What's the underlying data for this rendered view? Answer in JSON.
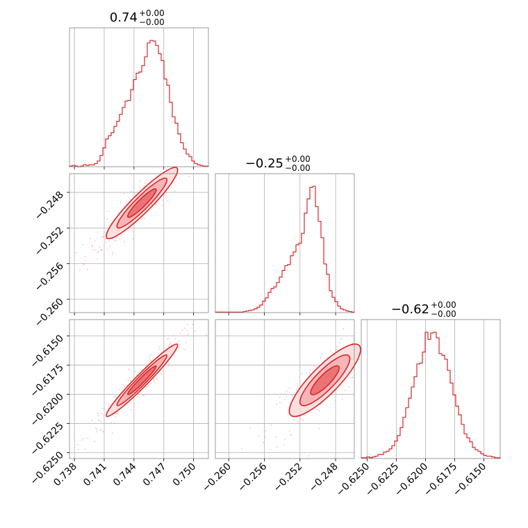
{
  "colors": {
    "main": "#d62728",
    "fill": "#f4aeb0",
    "scatter": "#f2b6b7"
  },
  "chart_data": {
    "type": "corner",
    "parameters": [
      {
        "title": {
          "value": "0.74",
          "upper": "+0.00",
          "lower": "−0.00"
        },
        "range": [
          0.7375,
          0.7515
        ],
        "ticks": [
          {
            "v": 0.738,
            "label": "0.738"
          },
          {
            "v": 0.741,
            "label": "0.741"
          },
          {
            "v": 0.744,
            "label": "0.744"
          },
          {
            "v": 0.747,
            "label": "0.747"
          },
          {
            "v": 0.75,
            "label": "0.750"
          }
        ],
        "hist": [
          1,
          2,
          1,
          0,
          1,
          3,
          2,
          3,
          3,
          5,
          9,
          18,
          30,
          44,
          49,
          54,
          64,
          72,
          83,
          94,
          104,
          105,
          122,
          138,
          148,
          150,
          160,
          174,
          196,
          200,
          199,
          192,
          179,
          168,
          139,
          129,
          102,
          79,
          69,
          52,
          38,
          28,
          20,
          16,
          9,
          5,
          3,
          2,
          1,
          1
        ]
      },
      {
        "title": {
          "value": "−0.25",
          "upper": "+0.00",
          "lower": "−0.00"
        },
        "range": [
          -0.2615,
          -0.2459
        ],
        "ticks": [
          {
            "v": -0.26,
            "label": "−0.260"
          },
          {
            "v": -0.256,
            "label": "−0.256"
          },
          {
            "v": -0.252,
            "label": "−0.252"
          },
          {
            "v": -0.248,
            "label": "−0.248"
          }
        ],
        "hist": [
          1,
          1,
          1,
          1,
          1,
          1,
          1,
          1,
          1,
          1,
          2,
          3,
          4,
          5,
          7,
          10,
          14,
          21,
          27,
          37,
          44,
          47,
          55,
          65,
          77,
          86,
          88,
          104,
          111,
          124,
          127,
          145,
          182,
          208,
          229,
          231,
          194,
          167,
          137,
          89,
          70,
          40,
          28,
          20,
          12,
          7,
          5,
          3,
          2,
          1
        ]
      },
      {
        "title": {
          "value": "−0.62",
          "upper": "+0.00",
          "lower": "−0.00"
        },
        "range": [
          -0.6255,
          -0.6136
        ],
        "ticks": [
          {
            "v": -0.625,
            "label": "−0.6250"
          },
          {
            "v": -0.6225,
            "label": "−0.6225"
          },
          {
            "v": -0.62,
            "label": "−0.6200"
          },
          {
            "v": -0.6175,
            "label": "−0.6175"
          },
          {
            "v": -0.615,
            "label": "−0.6150"
          }
        ],
        "hist": [
          1,
          1,
          2,
          1,
          2,
          3,
          5,
          5,
          8,
          9,
          12,
          16,
          22,
          29,
          39,
          52,
          64,
          76,
          90,
          103,
          119,
          120,
          134,
          159,
          150,
          158,
          159,
          152,
          132,
          130,
          125,
          111,
          95,
          80,
          66,
          55,
          43,
          31,
          26,
          21,
          14,
          11,
          9,
          6,
          4,
          3,
          3,
          2,
          1,
          1
        ]
      }
    ],
    "correlations": {
      "0-1": 0.93,
      "0-2": 0.97,
      "1-2": 0.85
    },
    "means": [
      0.7448,
      -0.2492,
      -0.6188
    ],
    "sigmas": [
      0.0018,
      0.002,
      0.00155
    ],
    "contour_levels": 3,
    "grid": true,
    "xlabels": [],
    "ylabels": []
  }
}
